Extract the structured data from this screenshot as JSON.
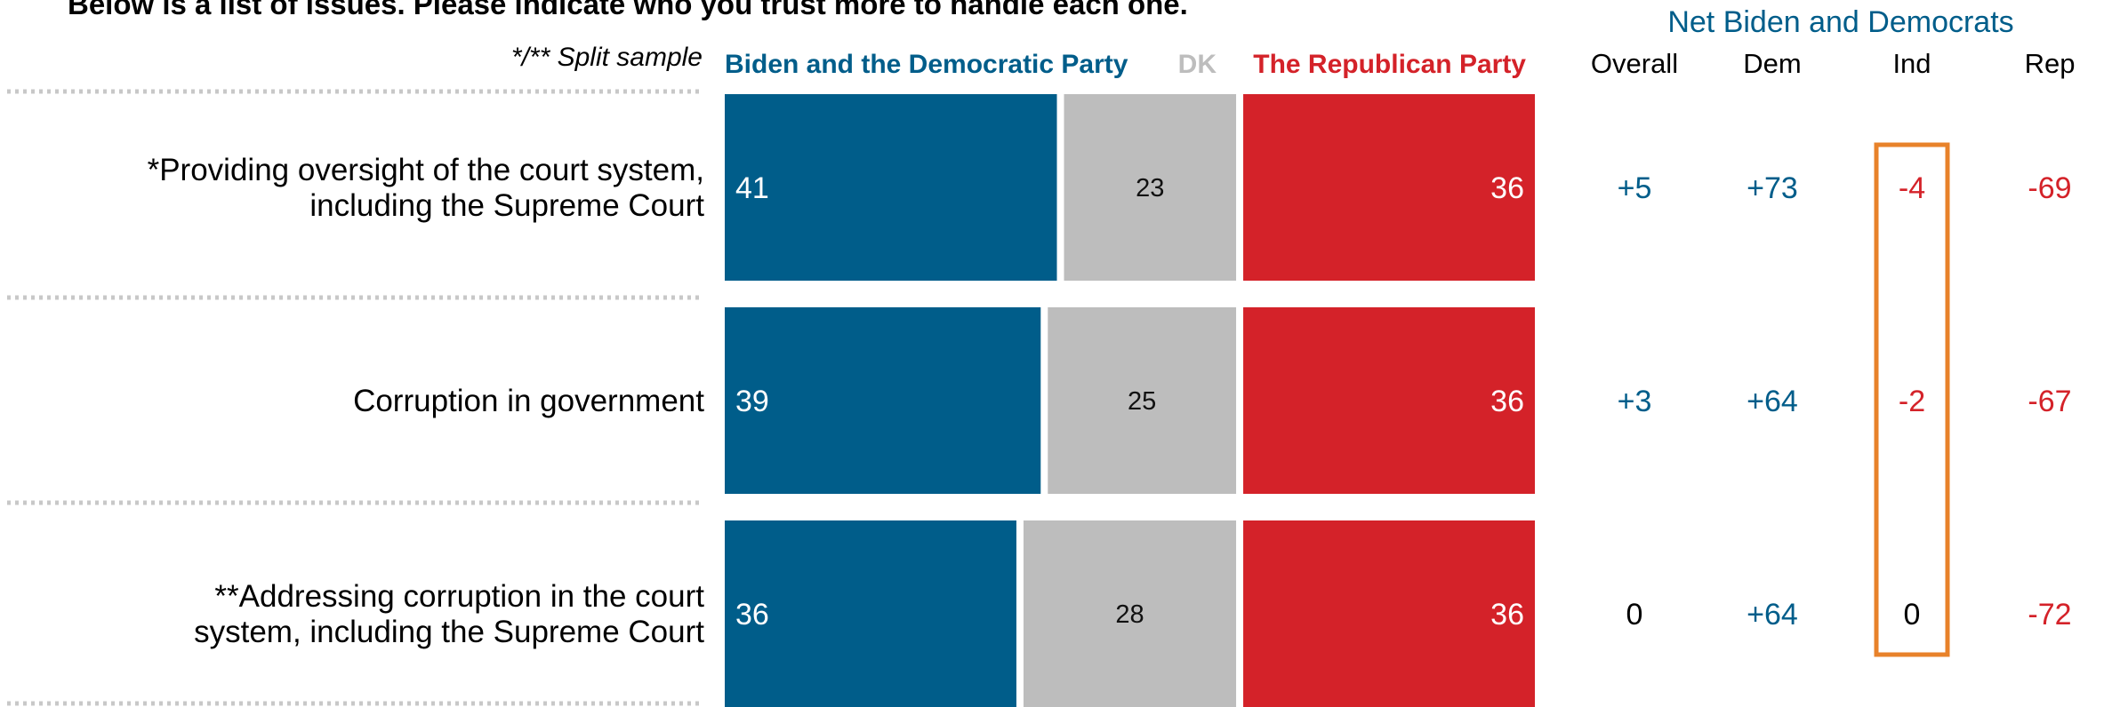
{
  "chart_data": {
    "type": "bar",
    "title": "Below is a list of issues. Please indicate who you trust more to handle each one.",
    "split_note": "*/** Split sample",
    "series": [
      {
        "name": "Biden and the Democratic Party",
        "color": "#005D8A"
      },
      {
        "name": "DK",
        "color": "#BDBDBD"
      },
      {
        "name": "The Republican Party",
        "color": "#D42229"
      }
    ],
    "net_header": "Net Biden and Democrats",
    "net_columns": [
      "Overall",
      "Dem",
      "Ind",
      "Rep"
    ],
    "rows": [
      {
        "label_lines": [
          "*Providing oversight of the court system,",
          "including the Supreme Court"
        ],
        "values": [
          41,
          23,
          36
        ],
        "value_labels": [
          "41",
          "23",
          "36"
        ],
        "net": [
          "+5",
          "+73",
          "-4",
          "-69"
        ]
      },
      {
        "label_lines": [
          "Corruption in government"
        ],
        "values": [
          39,
          25,
          36
        ],
        "value_labels": [
          "39",
          "25",
          "36"
        ],
        "net": [
          "+3",
          "+64",
          "-2",
          "-67"
        ]
      },
      {
        "label_lines": [
          "**Addressing corruption in the court",
          "system, including the Supreme Court"
        ],
        "values": [
          36,
          28,
          36
        ],
        "value_labels": [
          "36",
          "28",
          "36"
        ],
        "net": [
          "0",
          "+64",
          "0",
          "-72"
        ]
      }
    ],
    "colors": {
      "dem": "#005D8A",
      "dk": "#BDBDBD",
      "rep": "#D42229",
      "neutral": "#000000",
      "highlight": "#E8822A",
      "divider": "#C8C8C8"
    },
    "highlighted_column": "Ind"
  }
}
